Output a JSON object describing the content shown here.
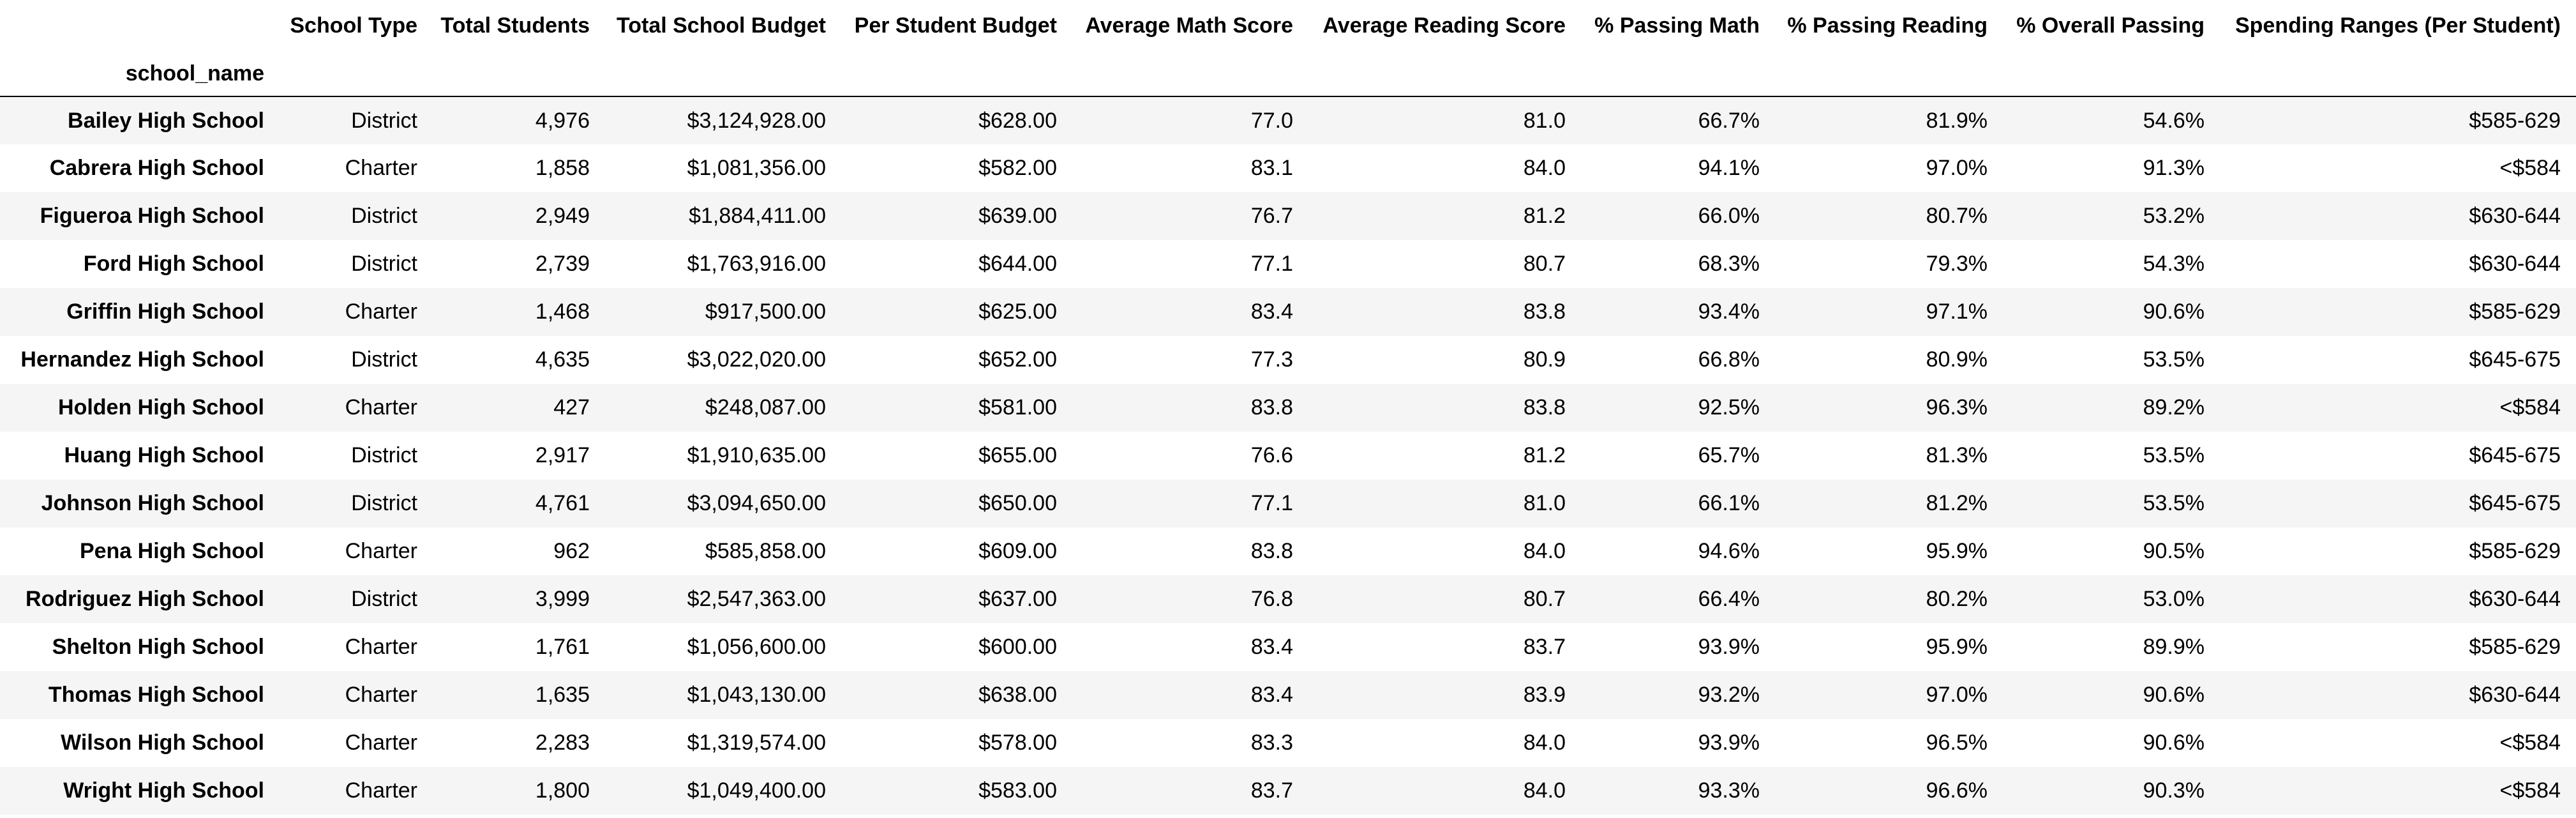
{
  "table": {
    "index_name": "school_name",
    "columns": [
      "School Type",
      "Total Students",
      "Total School Budget",
      "Per Student Budget",
      "Average Math Score",
      "Average Reading Score",
      "% Passing Math",
      "% Passing Reading",
      "% Overall Passing",
      "Spending Ranges (Per Student)"
    ],
    "rows": [
      {
        "school_name": "Bailey High School",
        "cells": [
          "District",
          "4,976",
          "$3,124,928.00",
          "$628.00",
          "77.0",
          "81.0",
          "66.7%",
          "81.9%",
          "54.6%",
          "$585-629"
        ]
      },
      {
        "school_name": "Cabrera High School",
        "cells": [
          "Charter",
          "1,858",
          "$1,081,356.00",
          "$582.00",
          "83.1",
          "84.0",
          "94.1%",
          "97.0%",
          "91.3%",
          "<$584"
        ]
      },
      {
        "school_name": "Figueroa High School",
        "cells": [
          "District",
          "2,949",
          "$1,884,411.00",
          "$639.00",
          "76.7",
          "81.2",
          "66.0%",
          "80.7%",
          "53.2%",
          "$630-644"
        ]
      },
      {
        "school_name": "Ford High School",
        "cells": [
          "District",
          "2,739",
          "$1,763,916.00",
          "$644.00",
          "77.1",
          "80.7",
          "68.3%",
          "79.3%",
          "54.3%",
          "$630-644"
        ]
      },
      {
        "school_name": "Griffin High School",
        "cells": [
          "Charter",
          "1,468",
          "$917,500.00",
          "$625.00",
          "83.4",
          "83.8",
          "93.4%",
          "97.1%",
          "90.6%",
          "$585-629"
        ]
      },
      {
        "school_name": "Hernandez High School",
        "cells": [
          "District",
          "4,635",
          "$3,022,020.00",
          "$652.00",
          "77.3",
          "80.9",
          "66.8%",
          "80.9%",
          "53.5%",
          "$645-675"
        ]
      },
      {
        "school_name": "Holden High School",
        "cells": [
          "Charter",
          "427",
          "$248,087.00",
          "$581.00",
          "83.8",
          "83.8",
          "92.5%",
          "96.3%",
          "89.2%",
          "<$584"
        ]
      },
      {
        "school_name": "Huang High School",
        "cells": [
          "District",
          "2,917",
          "$1,910,635.00",
          "$655.00",
          "76.6",
          "81.2",
          "65.7%",
          "81.3%",
          "53.5%",
          "$645-675"
        ]
      },
      {
        "school_name": "Johnson High School",
        "cells": [
          "District",
          "4,761",
          "$3,094,650.00",
          "$650.00",
          "77.1",
          "81.0",
          "66.1%",
          "81.2%",
          "53.5%",
          "$645-675"
        ]
      },
      {
        "school_name": "Pena High School",
        "cells": [
          "Charter",
          "962",
          "$585,858.00",
          "$609.00",
          "83.8",
          "84.0",
          "94.6%",
          "95.9%",
          "90.5%",
          "$585-629"
        ]
      },
      {
        "school_name": "Rodriguez High School",
        "cells": [
          "District",
          "3,999",
          "$2,547,363.00",
          "$637.00",
          "76.8",
          "80.7",
          "66.4%",
          "80.2%",
          "53.0%",
          "$630-644"
        ]
      },
      {
        "school_name": "Shelton High School",
        "cells": [
          "Charter",
          "1,761",
          "$1,056,600.00",
          "$600.00",
          "83.4",
          "83.7",
          "93.9%",
          "95.9%",
          "89.9%",
          "$585-629"
        ]
      },
      {
        "school_name": "Thomas High School",
        "cells": [
          "Charter",
          "1,635",
          "$1,043,130.00",
          "$638.00",
          "83.4",
          "83.9",
          "93.2%",
          "97.0%",
          "90.6%",
          "$630-644"
        ]
      },
      {
        "school_name": "Wilson High School",
        "cells": [
          "Charter",
          "2,283",
          "$1,319,574.00",
          "$578.00",
          "83.3",
          "84.0",
          "93.9%",
          "96.5%",
          "90.6%",
          "<$584"
        ]
      },
      {
        "school_name": "Wright High School",
        "cells": [
          "Charter",
          "1,800",
          "$1,049,400.00",
          "$583.00",
          "83.7",
          "84.0",
          "93.3%",
          "96.6%",
          "90.3%",
          "<$584"
        ]
      }
    ]
  }
}
